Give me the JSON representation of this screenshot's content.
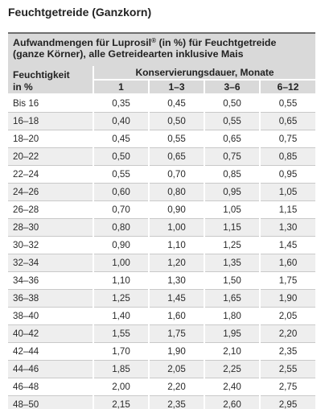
{
  "heading": "Feuchtgetreide (Ganzkorn)",
  "caption": {
    "line1_pre": "Aufwandmengen für Luprosil",
    "registered": "®",
    "line1_post": " (in %) für Feuchtgetreide",
    "line2": "(ganze Körner), alle Getreidearten inklusive Mais"
  },
  "table": {
    "moisture_header_line1": "Feuchtigkeit",
    "moisture_header_line2": "in %",
    "duration_header": "Konservierungsdauer, Monate",
    "months": [
      "1",
      "1–3",
      "3–6",
      "6–12"
    ],
    "rows": [
      {
        "label": "Bis 16",
        "values": [
          "0,35",
          "0,45",
          "0,50",
          "0,55"
        ]
      },
      {
        "label": "16–18",
        "values": [
          "0,40",
          "0,50",
          "0,55",
          "0,65"
        ]
      },
      {
        "label": "18–20",
        "values": [
          "0,45",
          "0,55",
          "0,65",
          "0,75"
        ]
      },
      {
        "label": "20–22",
        "values": [
          "0,50",
          "0,65",
          "0,75",
          "0,85"
        ]
      },
      {
        "label": "22–24",
        "values": [
          "0,55",
          "0,70",
          "0,85",
          "0,95"
        ]
      },
      {
        "label": "24–26",
        "values": [
          "0,60",
          "0,80",
          "0,95",
          "1,05"
        ]
      },
      {
        "label": "26–28",
        "values": [
          "0,70",
          "0,90",
          "1,05",
          "1,15"
        ]
      },
      {
        "label": "28–30",
        "values": [
          "0,80",
          "1,00",
          "1,15",
          "1,30"
        ]
      },
      {
        "label": "30–32",
        "values": [
          "0,90",
          "1,10",
          "1,25",
          "1,45"
        ]
      },
      {
        "label": "32–34",
        "values": [
          "1,00",
          "1,20",
          "1,35",
          "1,60"
        ]
      },
      {
        "label": "34–36",
        "values": [
          "1,10",
          "1,30",
          "1,50",
          "1,75"
        ]
      },
      {
        "label": "36–38",
        "values": [
          "1,25",
          "1,45",
          "1,65",
          "1,90"
        ]
      },
      {
        "label": "38–40",
        "values": [
          "1,40",
          "1,60",
          "1,80",
          "2,05"
        ]
      },
      {
        "label": "40–42",
        "values": [
          "1,55",
          "1,75",
          "1,95",
          "2,20"
        ]
      },
      {
        "label": "42–44",
        "values": [
          "1,70",
          "1,90",
          "2,10",
          "2,35"
        ]
      },
      {
        "label": "44–46",
        "values": [
          "1,85",
          "2,05",
          "2,25",
          "2,55"
        ]
      },
      {
        "label": "46–48",
        "values": [
          "2,00",
          "2,20",
          "2,40",
          "2,75"
        ]
      },
      {
        "label": "48–50",
        "values": [
          "2,15",
          "2,35",
          "2,60",
          "2,95"
        ]
      }
    ]
  }
}
